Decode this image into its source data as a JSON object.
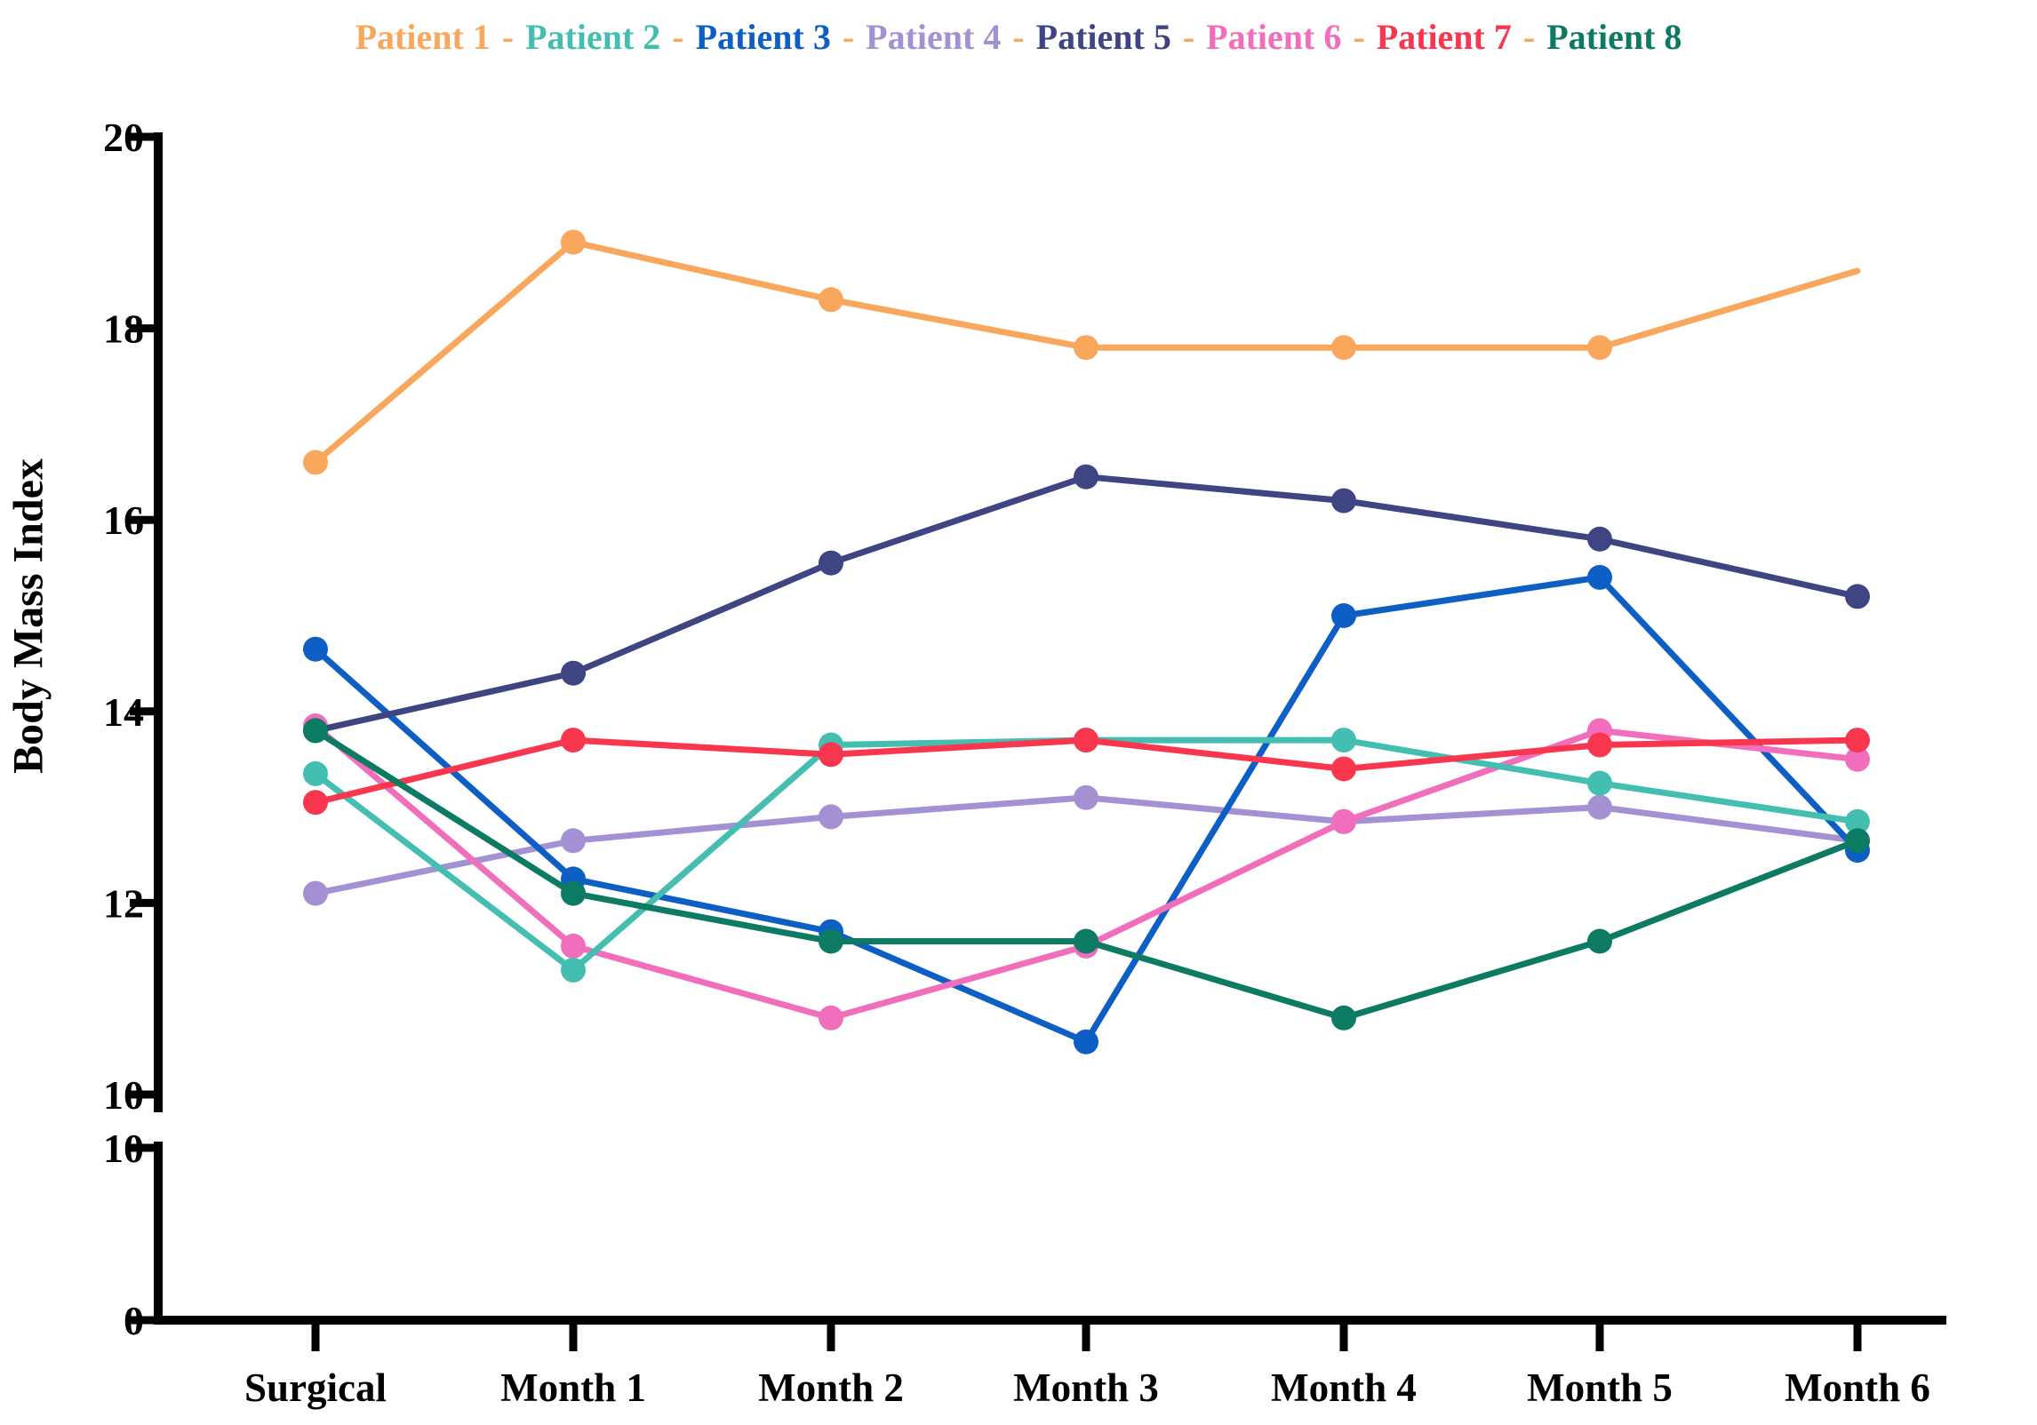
{
  "chart_data": {
    "type": "line",
    "title": "",
    "ylabel": "Body Mass Index",
    "xlabel": "",
    "x_categories": [
      "Surgical",
      "Month 1",
      "Month 2",
      "Month 3",
      "Month 4",
      "Month 5",
      "Month 6"
    ],
    "y_axis": {
      "axis_break": true,
      "upper_range": [
        10,
        20
      ],
      "lower_range": [
        0,
        10
      ],
      "upper_ticks": [
        20,
        18,
        16,
        14,
        12,
        10
      ],
      "lower_ticks": [
        10,
        0
      ]
    },
    "grid": "off",
    "legend_position": "top-center",
    "legend_separator": "-",
    "legend_separator_color": "#F9A75C",
    "series": [
      {
        "name": "Patient 1",
        "color": "#F9A75C",
        "values": [
          16.6,
          18.9,
          18.3,
          17.8,
          17.8,
          17.8,
          18.6
        ],
        "last_marker": false
      },
      {
        "name": "Patient 2",
        "color": "#45BEB2",
        "values": [
          13.35,
          11.3,
          13.65,
          13.7,
          13.7,
          13.25,
          12.85
        ],
        "last_marker": true
      },
      {
        "name": "Patient 3",
        "color": "#0D5FC5",
        "values": [
          14.65,
          12.25,
          11.7,
          10.55,
          15.0,
          15.4,
          12.55
        ],
        "last_marker": true
      },
      {
        "name": "Patient 4",
        "color": "#A491D3",
        "values": [
          12.1,
          12.65,
          12.9,
          13.1,
          12.85,
          13.0,
          12.65
        ],
        "last_marker": true
      },
      {
        "name": "Patient 5",
        "color": "#3F4583",
        "values": [
          13.8,
          14.4,
          15.55,
          16.45,
          16.2,
          15.8,
          15.2
        ],
        "last_marker": true
      },
      {
        "name": "Patient 6",
        "color": "#F06EBB",
        "values": [
          13.85,
          11.55,
          10.8,
          11.55,
          12.85,
          13.8,
          13.5
        ],
        "last_marker": true
      },
      {
        "name": "Patient 7",
        "color": "#F8374F",
        "values": [
          13.05,
          13.7,
          13.55,
          13.7,
          13.4,
          13.65,
          13.7
        ],
        "last_marker": true
      },
      {
        "name": "Patient 8",
        "color": "#0D7A63",
        "values": [
          13.8,
          12.1,
          11.6,
          11.6,
          10.8,
          11.6,
          12.65
        ],
        "last_marker": true
      }
    ],
    "draw_order": [
      3,
      2,
      5,
      1,
      6,
      4,
      7,
      0
    ]
  }
}
